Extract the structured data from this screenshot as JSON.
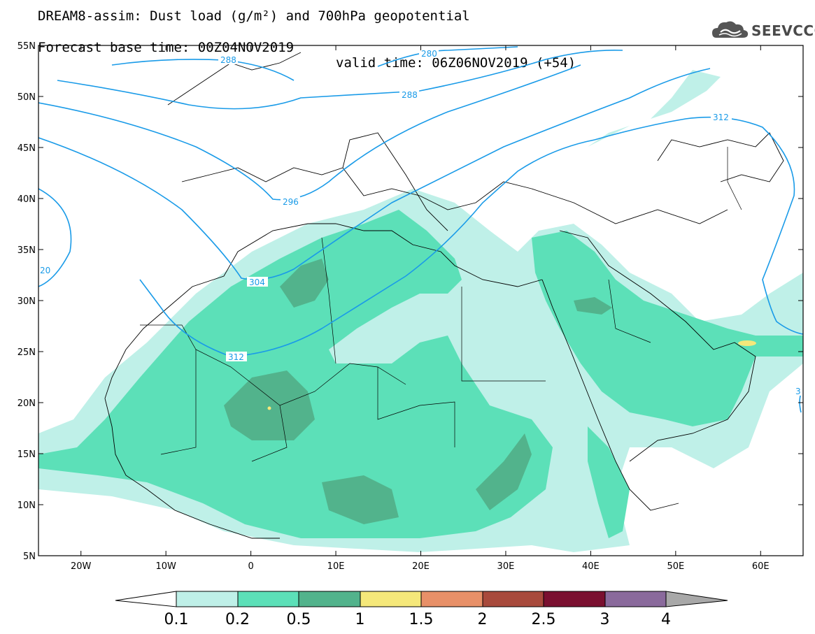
{
  "header": {
    "title_line1": "DREAM8-assim: Dust load (g/m²) and 700hPa geopotential",
    "base_time": "Forecast base time: 00Z04NOV2019",
    "valid_time": "valid time: 06Z06NOV2019 (+54)",
    "logo_text": "SEEVCCC"
  },
  "map": {
    "lon_range": [
      -25,
      65
    ],
    "lat_range": [
      5,
      55
    ],
    "lat_ticks": [
      "55N",
      "50N",
      "45N",
      "40N",
      "35N",
      "30N",
      "25N",
      "20N",
      "15N",
      "10N",
      "5N"
    ],
    "lon_ticks": [
      "20W",
      "10W",
      "0",
      "10E",
      "20E",
      "30E",
      "40E",
      "50E",
      "60E"
    ],
    "contour_labels": [
      "288",
      "280",
      "288",
      "312",
      "296",
      "304",
      "312",
      "20",
      "3"
    ],
    "colors": {
      "contour": "#1a9be8",
      "coast": "#000000"
    }
  },
  "colorbar": {
    "labels": [
      "0.1",
      "0.2",
      "0.5",
      "1",
      "1.5",
      "2",
      "2.5",
      "3",
      "4"
    ],
    "colors": [
      "#ffffff",
      "#bff0e8",
      "#5ce0b8",
      "#52b38c",
      "#f5e87a",
      "#e89068",
      "#a84a3c",
      "#7a1030",
      "#8a6a9c",
      "#a8a8a8"
    ]
  }
}
